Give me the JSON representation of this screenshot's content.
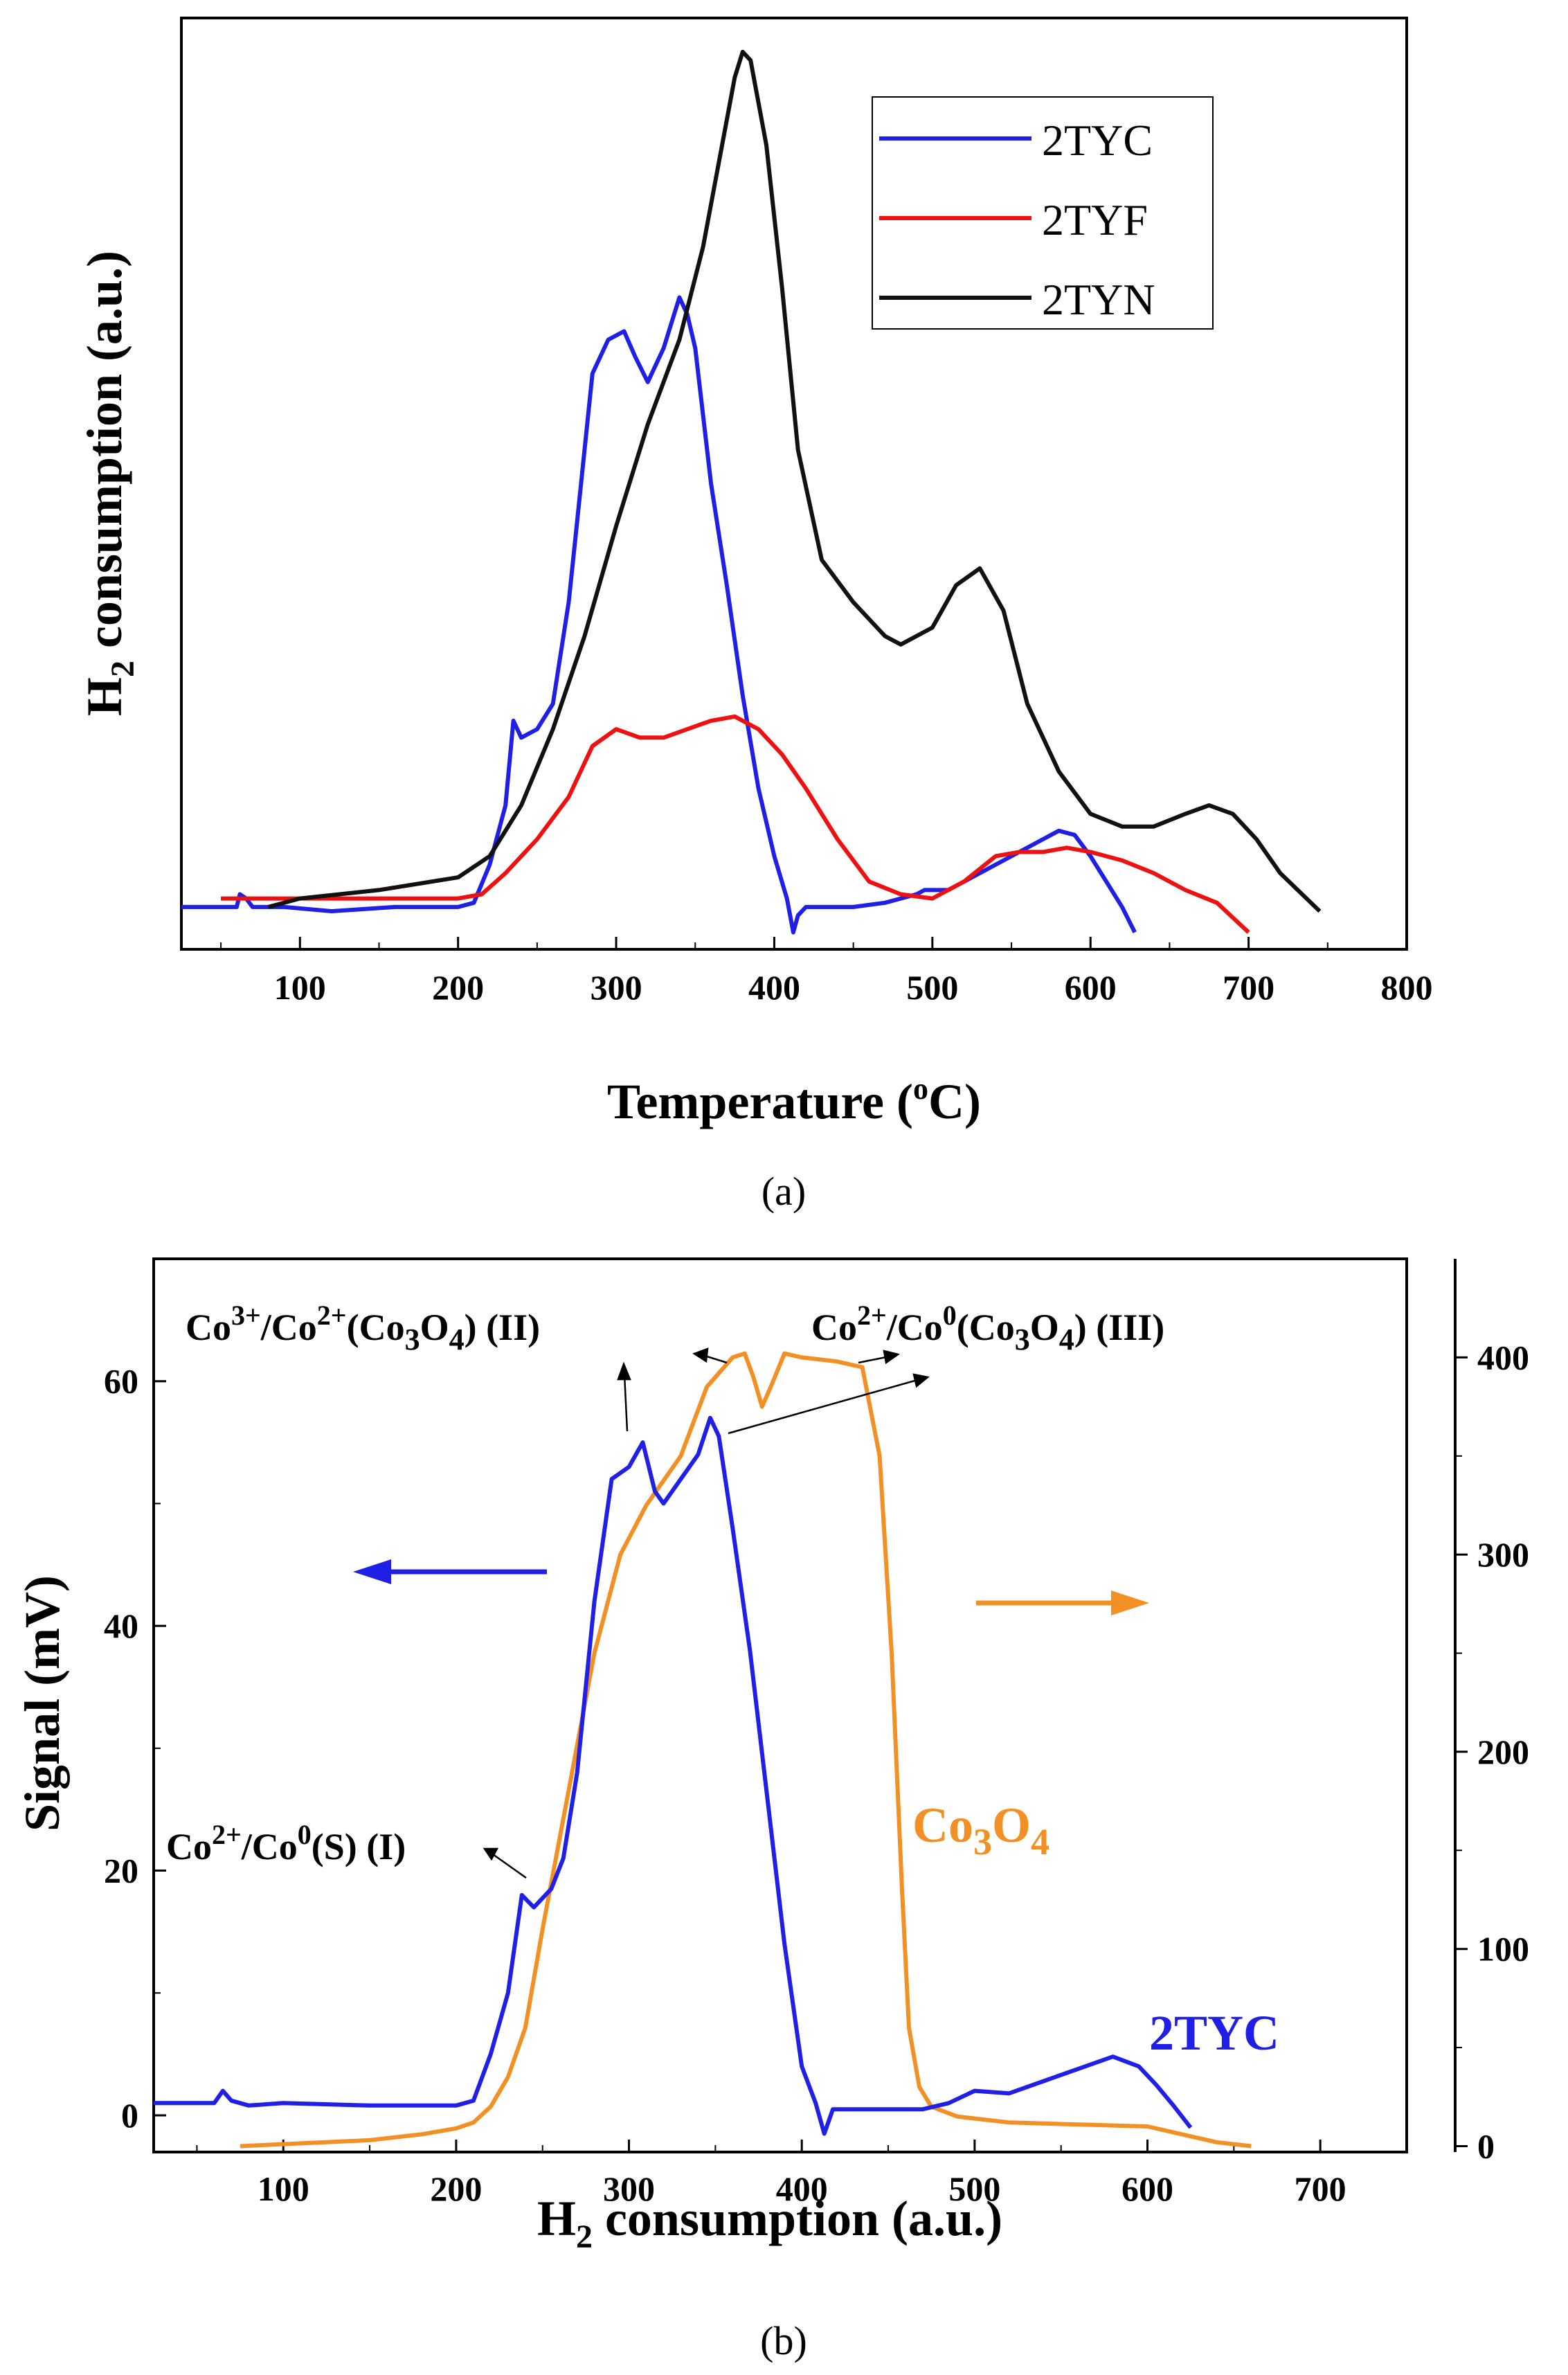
{
  "chart_data": [
    {
      "type": "line",
      "panel": "a",
      "caption": "(a)",
      "xlabel": "Temperature (°C)",
      "ylabel": "H2 consumption (a.u.)",
      "xlim": [
        25,
        800
      ],
      "ylim": [
        -0.5,
        10.5
      ],
      "yticks_shown": false,
      "xticks": [
        100,
        200,
        300,
        400,
        500,
        600,
        700,
        800
      ],
      "legend_position": "top-right",
      "series": [
        {
          "name": "2TYC",
          "color": "#1f1fe6",
          "x": [
            25,
            60,
            62,
            66,
            70,
            90,
            120,
            160,
            200,
            210,
            220,
            230,
            235,
            240,
            250,
            260,
            270,
            275,
            285,
            295,
            305,
            312,
            320,
            330,
            340,
            345,
            350,
            355,
            360,
            370,
            380,
            390,
            400,
            408,
            412,
            415,
            420,
            430,
            450,
            470,
            490,
            495,
            510,
            530,
            550,
            570,
            580,
            590,
            600,
            610,
            620,
            628
          ],
          "y": [
            0.0,
            0.0,
            0.15,
            0.1,
            0.0,
            0.0,
            -0.05,
            0.0,
            0.0,
            0.05,
            0.5,
            1.2,
            2.2,
            2.0,
            2.1,
            2.4,
            3.6,
            4.5,
            6.3,
            6.7,
            6.8,
            6.5,
            6.2,
            6.6,
            7.2,
            7.0,
            6.6,
            5.8,
            5.0,
            3.8,
            2.5,
            1.4,
            0.6,
            0.1,
            -0.3,
            -0.1,
            0.0,
            0.0,
            0.0,
            0.05,
            0.15,
            0.2,
            0.2,
            0.4,
            0.6,
            0.8,
            0.9,
            0.85,
            0.6,
            0.3,
            0.0,
            -0.3
          ]
        },
        {
          "name": "2TYF",
          "color": "#ee1111",
          "x": [
            50,
            150,
            200,
            215,
            230,
            250,
            270,
            285,
            300,
            315,
            330,
            345,
            360,
            375,
            390,
            405,
            420,
            440,
            460,
            480,
            500,
            520,
            540,
            555,
            570,
            585,
            600,
            620,
            640,
            660,
            680,
            700
          ],
          "y": [
            0.1,
            0.1,
            0.1,
            0.15,
            0.4,
            0.8,
            1.3,
            1.9,
            2.1,
            2.0,
            2.0,
            2.1,
            2.2,
            2.25,
            2.1,
            1.8,
            1.4,
            0.8,
            0.3,
            0.15,
            0.1,
            0.3,
            0.6,
            0.65,
            0.65,
            0.7,
            0.65,
            0.55,
            0.4,
            0.2,
            0.05,
            -0.3
          ]
        },
        {
          "name": "2TYN",
          "color": "#111111",
          "x": [
            80,
            100,
            150,
            200,
            220,
            240,
            260,
            280,
            300,
            320,
            340,
            355,
            365,
            375,
            380,
            385,
            395,
            405,
            415,
            430,
            450,
            470,
            480,
            500,
            515,
            530,
            545,
            560,
            580,
            600,
            620,
            640,
            660,
            675,
            690,
            705,
            720,
            745
          ],
          "y": [
            0.0,
            0.1,
            0.2,
            0.35,
            0.6,
            1.2,
            2.1,
            3.2,
            4.5,
            5.7,
            6.7,
            7.8,
            8.8,
            9.8,
            10.1,
            10.0,
            9.0,
            7.3,
            5.4,
            4.1,
            3.6,
            3.2,
            3.1,
            3.3,
            3.8,
            4.0,
            3.5,
            2.4,
            1.6,
            1.1,
            0.95,
            0.95,
            1.1,
            1.2,
            1.1,
            0.8,
            0.4,
            -0.05
          ]
        }
      ]
    },
    {
      "type": "line",
      "panel": "b",
      "caption": "(b)",
      "xlabel": "H2 consumption (a.u.)",
      "ylabel": "Signal (mV)",
      "xlim": [
        25,
        750
      ],
      "ylim": [
        -3,
        70
      ],
      "xticks": [
        100,
        200,
        300,
        400,
        500,
        600,
        700
      ],
      "yticks": [
        0,
        20,
        40,
        60
      ],
      "y2lim": [
        -3,
        450
      ],
      "y2ticks": [
        0,
        100,
        200,
        300,
        400
      ],
      "series": [
        {
          "name": "2TYC",
          "axis": "left",
          "color": "#1f1fe6",
          "x": [
            25,
            60,
            65,
            70,
            80,
            100,
            150,
            200,
            210,
            220,
            230,
            238,
            245,
            255,
            262,
            270,
            280,
            290,
            300,
            308,
            315,
            320,
            330,
            340,
            347,
            352,
            360,
            370,
            380,
            390,
            400,
            408,
            413,
            418,
            425,
            450,
            470,
            485,
            500,
            520,
            540,
            560,
            580,
            595,
            605,
            615,
            625
          ],
          "y": [
            1.0,
            1.0,
            2.0,
            1.2,
            0.8,
            1.0,
            0.8,
            0.8,
            1.2,
            5.0,
            10.0,
            18.0,
            17.0,
            18.5,
            21.0,
            28.0,
            42.0,
            52.0,
            53.0,
            55.0,
            51.0,
            50.0,
            52.0,
            54.0,
            57.0,
            55.5,
            48.0,
            38.0,
            26.0,
            14.0,
            4.0,
            1.0,
            -1.5,
            0.5,
            0.5,
            0.5,
            0.5,
            1.0,
            2.0,
            1.8,
            2.8,
            3.8,
            4.8,
            4.0,
            2.5,
            0.8,
            -1.0
          ]
        },
        {
          "name": "Co3O4",
          "axis": "right",
          "color": "#f39025",
          "x": [
            75,
            150,
            180,
            200,
            210,
            220,
            230,
            240,
            250,
            265,
            280,
            295,
            310,
            330,
            345,
            360,
            367,
            372,
            377,
            382,
            390,
            400,
            420,
            435,
            445,
            452,
            458,
            462,
            468,
            475,
            490,
            520,
            600,
            620,
            640,
            660
          ],
          "y": [
            0,
            3,
            6,
            9,
            12,
            20,
            35,
            60,
            110,
            180,
            250,
            300,
            325,
            350,
            385,
            400,
            402,
            390,
            375,
            385,
            402,
            400,
            398,
            395,
            350,
            250,
            130,
            60,
            30,
            20,
            15,
            12,
            10,
            6,
            2,
            0
          ]
        }
      ],
      "annotations": [
        {
          "sup_parts": [
            "Co",
            "2+",
            "/Co",
            "0",
            "(S) (I)"
          ],
          "plain": "Co2+/Co0(S) (I)"
        },
        {
          "sup_parts": [
            "Co",
            "3+",
            "/Co",
            "2+",
            "(Co",
            "3",
            "O",
            "4",
            ") (II)"
          ],
          "plain": "Co3+/Co2+(Co3O4) (II)"
        },
        {
          "sup_parts": [
            "Co",
            "2+",
            "/Co",
            "0",
            "(Co",
            "3",
            "O",
            "4",
            ") (III)"
          ],
          "plain": "Co2+/Co0(Co3O4) (III)"
        }
      ],
      "series_labels": {
        "co3o4": {
          "base": "Co",
          "sub1": "3",
          "mid": "O",
          "sub2": "4"
        },
        "tyc": "2TYC"
      }
    }
  ]
}
